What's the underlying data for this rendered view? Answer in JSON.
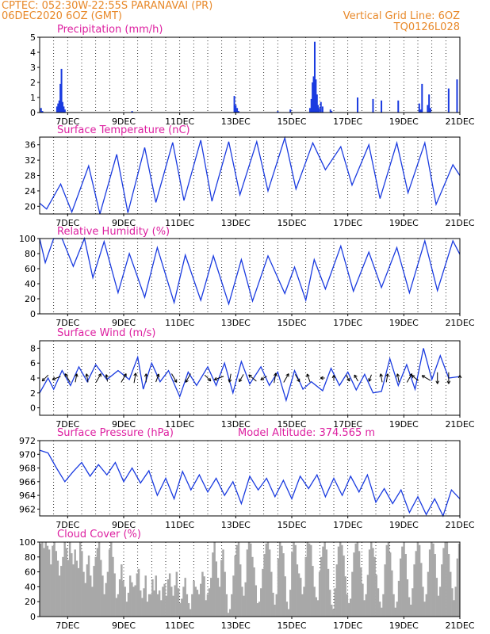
{
  "header": {
    "left_line1": "CPTEC:   052:30W-22:55S   PARANAVAI (PR)",
    "left_line2": "06DEC2020 6OZ (GMT)",
    "right_line1": "Vertical Grid Line: 6OZ",
    "right_line2": "TQ0126L028"
  },
  "colors": {
    "header": "#e8892a",
    "title": "#dd1fa0",
    "series": "#1a3be0",
    "cloud": "#a8a8a8",
    "wind_arrow": "#000000"
  },
  "x_axis": {
    "ticks": [
      "7DEC",
      "9DEC",
      "11DEC",
      "13DEC",
      "15DEC",
      "17DEC",
      "19DEC",
      "21DEC"
    ],
    "grid": "vertical dotted lines every 12 hours"
  },
  "chart_data": [
    {
      "id": "precip",
      "type": "bar",
      "title": "Precipitation (mm/h)",
      "ylim": [
        0,
        5
      ],
      "yticks": [
        "0",
        "1",
        "2",
        "3",
        "4",
        "5"
      ],
      "x_unit": "days since 6DEC2020 06Z",
      "x": [
        0.05,
        0.1,
        0.62,
        0.66,
        0.7,
        0.74,
        0.78,
        0.82,
        0.86,
        0.9,
        3.3,
        6.95,
        7.0,
        7.05,
        7.1,
        8.5,
        8.95,
        9.65,
        9.7,
        9.74,
        9.78,
        9.82,
        9.86,
        9.9,
        9.94,
        9.98,
        10.04,
        10.1,
        10.38,
        10.42,
        11.35,
        11.9,
        12.2,
        12.8,
        13.55,
        13.6,
        13.65,
        13.85,
        13.9,
        13.95,
        14.6,
        14.9
      ],
      "values": [
        0.3,
        0.1,
        0.4,
        0.6,
        0.8,
        1.9,
        2.9,
        0.7,
        0.4,
        0.2,
        0.1,
        1.1,
        0.5,
        0.3,
        0.1,
        0.1,
        0.2,
        0.3,
        0.9,
        2.0,
        2.4,
        4.7,
        2.2,
        1.2,
        0.5,
        0.3,
        0.7,
        0.4,
        0.2,
        0.1,
        1.0,
        0.9,
        0.8,
        0.8,
        0.6,
        0.2,
        1.9,
        0.5,
        1.2,
        0.3,
        1.6,
        2.2
      ]
    },
    {
      "id": "temp",
      "type": "line",
      "title": "Surface Temperature (nC)",
      "ylim": [
        18,
        38
      ],
      "yticks": [
        "20",
        "24",
        "28",
        "32",
        "36"
      ],
      "x": [
        0.0,
        0.25,
        0.75,
        1.15,
        1.75,
        2.15,
        2.75,
        3.15,
        3.75,
        4.15,
        4.75,
        5.15,
        5.75,
        6.15,
        6.75,
        7.15,
        7.75,
        8.15,
        8.75,
        9.15,
        9.75,
        10.2,
        10.75,
        11.15,
        11.75,
        12.15,
        12.75,
        13.15,
        13.75,
        14.15,
        14.75,
        15.0
      ],
      "values": [
        20.8,
        19.3,
        25.8,
        18.5,
        30.5,
        18.0,
        33.5,
        18.3,
        35.3,
        21.0,
        36.6,
        21.5,
        37.2,
        21.3,
        36.8,
        23.0,
        36.8,
        24.0,
        37.8,
        24.5,
        36.5,
        29.5,
        35.5,
        25.5,
        36.0,
        22.0,
        36.5,
        23.5,
        36.5,
        20.5,
        30.8,
        28.0
      ]
    },
    {
      "id": "rh",
      "type": "line",
      "title": "Relative Humidity (%)",
      "ylim": [
        0,
        100
      ],
      "yticks": [
        "0",
        "20",
        "40",
        "60",
        "80",
        "100"
      ],
      "x": [
        0.0,
        0.2,
        0.5,
        0.8,
        1.2,
        1.6,
        1.9,
        2.3,
        2.8,
        3.2,
        3.75,
        4.2,
        4.8,
        5.2,
        5.75,
        6.2,
        6.75,
        7.2,
        7.6,
        8.15,
        8.75,
        9.1,
        9.5,
        9.8,
        10.2,
        10.75,
        11.2,
        11.75,
        12.2,
        12.75,
        13.2,
        13.75,
        14.2,
        14.75,
        15.0
      ],
      "values": [
        100,
        68,
        100,
        100,
        63,
        100,
        48,
        96,
        28,
        80,
        22,
        88,
        15,
        78,
        18,
        77,
        13,
        72,
        17,
        77,
        27,
        62,
        18,
        72,
        33,
        90,
        30,
        82,
        35,
        88,
        28,
        97,
        31,
        97,
        79
      ]
    },
    {
      "id": "wind",
      "type": "line",
      "title": "Surface Wind (m/s)",
      "ylim": [
        -1,
        9
      ],
      "yticks": [
        "0",
        "2",
        "4",
        "6",
        "8"
      ],
      "x": [
        0.0,
        0.3,
        0.5,
        0.8,
        1.1,
        1.4,
        1.7,
        2.0,
        2.4,
        2.8,
        3.2,
        3.5,
        3.7,
        4.0,
        4.3,
        4.6,
        5.0,
        5.3,
        5.6,
        6.0,
        6.3,
        6.6,
        6.9,
        7.2,
        7.5,
        7.9,
        8.2,
        8.5,
        8.8,
        9.1,
        9.4,
        9.7,
        10.1,
        10.4,
        10.7,
        11.0,
        11.3,
        11.6,
        11.9,
        12.2,
        12.5,
        12.8,
        13.1,
        13.4,
        13.7,
        14.0,
        14.3,
        14.6,
        15.0
      ],
      "values": [
        2.0,
        4.0,
        2.5,
        5.0,
        3.0,
        5.5,
        3.5,
        5.8,
        3.8,
        5.0,
        3.8,
        6.8,
        2.5,
        6.0,
        3.5,
        5.0,
        1.5,
        4.8,
        3.0,
        5.5,
        3.0,
        6.0,
        2.0,
        6.2,
        3.2,
        5.5,
        3.0,
        4.8,
        1.0,
        5.0,
        2.5,
        3.5,
        2.3,
        5.3,
        3.0,
        4.8,
        2.4,
        4.5,
        2.0,
        2.2,
        6.6,
        3.0,
        5.8,
        2.5,
        8.0,
        3.8,
        7.0,
        4.0,
        4.2
      ],
      "arrows_x": [
        0.2,
        0.6,
        1.0,
        1.3,
        1.7,
        2.1,
        2.4,
        3.0,
        3.4,
        3.8,
        4.2,
        4.8,
        5.3,
        6.0,
        6.4,
        6.8,
        7.2,
        7.6,
        8.0,
        8.4,
        8.8,
        9.2,
        9.6,
        10.1,
        10.5,
        11.0,
        11.3,
        11.8,
        12.2,
        12.4,
        12.8,
        13.2,
        13.4,
        13.8,
        14.2,
        14.6,
        15.0
      ],
      "arrows_dir": [
        225,
        200,
        120,
        80,
        100,
        60,
        100,
        60,
        80,
        90,
        70,
        300,
        240,
        315,
        200,
        260,
        240,
        140,
        210,
        80,
        60,
        300,
        110,
        180,
        90,
        300,
        120,
        250,
        100,
        80,
        100,
        60,
        140,
        150,
        270,
        270,
        90
      ],
      "arrows_len": [
        0.6,
        0.6,
        0.7,
        0.6,
        0.6,
        0.7,
        0.5,
        0.7,
        0.7,
        0.6,
        0.6,
        0.7,
        0.7,
        0.6,
        0.7,
        0.6,
        0.6,
        0.7,
        0.5,
        0.7,
        0.7,
        0.6,
        0.6,
        0.3,
        0.4,
        0.5,
        0.5,
        0.5,
        0.6,
        0.6,
        0.6,
        0.7,
        0.6,
        0.7,
        0.8,
        0.8,
        0.4
      ]
    },
    {
      "id": "pressure",
      "type": "line",
      "title": "Surface Pressure (hPa)",
      "annotation": "Model Altitude: 374.565 m",
      "ylim": [
        961,
        972
      ],
      "yticks": [
        "962",
        "964",
        "966",
        "968",
        "970",
        "972"
      ],
      "x": [
        0.0,
        0.3,
        0.6,
        0.9,
        1.2,
        1.5,
        1.8,
        2.1,
        2.4,
        2.7,
        3.0,
        3.3,
        3.6,
        3.9,
        4.2,
        4.5,
        4.8,
        5.1,
        5.4,
        5.7,
        6.0,
        6.3,
        6.6,
        6.9,
        7.2,
        7.5,
        7.8,
        8.1,
        8.4,
        8.7,
        9.0,
        9.3,
        9.6,
        9.9,
        10.2,
        10.5,
        10.8,
        11.1,
        11.4,
        11.7,
        12.0,
        12.3,
        12.6,
        12.9,
        13.2,
        13.5,
        13.8,
        14.1,
        14.4,
        14.7,
        15.0
      ],
      "values": [
        970.6,
        970.2,
        968.0,
        966.0,
        967.5,
        968.8,
        966.8,
        968.5,
        967.0,
        968.8,
        966.0,
        968.0,
        965.8,
        967.6,
        964.0,
        966.5,
        963.5,
        967.5,
        964.8,
        967.0,
        964.5,
        966.5,
        964.0,
        966.0,
        962.8,
        966.8,
        964.8,
        966.5,
        963.8,
        966.2,
        963.5,
        966.8,
        965.0,
        967.0,
        963.8,
        966.5,
        964.0,
        966.8,
        964.5,
        967.0,
        963.0,
        965.0,
        962.8,
        964.8,
        961.5,
        963.8,
        961.2,
        963.5,
        961.0,
        964.8,
        963.5
      ]
    },
    {
      "id": "cloud",
      "type": "bar",
      "title": "Cloud Cover (%)",
      "ylim": [
        0,
        100
      ],
      "yticks": [
        "0",
        "20",
        "40",
        "60",
        "80",
        "100"
      ],
      "values": [
        98,
        100,
        92,
        100,
        95,
        90,
        70,
        95,
        100,
        88,
        75,
        55,
        68,
        80,
        100,
        92,
        76,
        100,
        85,
        70,
        90,
        75,
        65,
        100,
        88,
        60,
        45,
        70,
        82,
        55,
        40,
        68,
        80,
        92,
        100,
        76,
        55,
        30,
        45,
        60,
        90,
        100,
        80,
        58,
        25,
        30,
        50,
        70,
        48,
        40,
        20,
        32,
        55,
        46,
        40,
        42,
        58,
        64,
        35,
        25,
        38,
        55,
        20,
        30,
        30,
        50,
        35,
        55,
        30,
        35,
        22,
        40,
        44,
        28,
        50,
        58,
        40,
        28,
        42,
        60,
        38,
        18,
        24,
        40,
        52,
        30,
        18,
        10,
        30,
        48,
        40,
        36,
        30,
        44,
        60,
        54,
        22,
        30,
        38,
        52,
        86,
        100,
        74,
        52,
        40,
        76,
        90,
        60,
        30,
        5,
        10,
        30,
        55,
        82,
        96,
        100,
        70,
        40,
        28,
        46,
        90,
        100,
        98,
        80,
        66,
        42,
        18,
        20,
        38,
        64,
        84,
        98,
        100,
        90,
        60,
        32,
        16,
        30,
        78,
        100,
        95,
        85,
        54,
        20,
        10,
        36,
        86,
        100,
        96,
        70,
        58,
        52,
        30,
        40,
        80,
        100,
        98,
        96,
        68,
        40,
        26,
        22,
        60,
        80,
        94,
        100,
        90,
        64,
        36,
        16,
        10,
        38,
        70,
        94,
        100,
        96,
        82,
        54,
        30,
        18,
        24,
        60,
        86,
        98,
        100,
        88,
        66,
        44,
        22,
        30,
        56,
        90,
        100,
        92,
        80,
        56,
        38,
        20,
        12,
        30,
        70,
        96,
        100,
        86,
        62,
        30,
        12,
        20,
        48,
        78,
        94,
        100,
        84,
        50,
        26,
        16,
        38,
        70,
        88,
        100,
        96,
        72,
        40,
        20,
        30,
        60,
        90,
        100,
        98,
        84,
        52,
        28,
        40,
        70,
        92,
        100,
        100,
        84,
        60,
        38,
        22,
        40,
        78,
        98
      ]
    }
  ]
}
